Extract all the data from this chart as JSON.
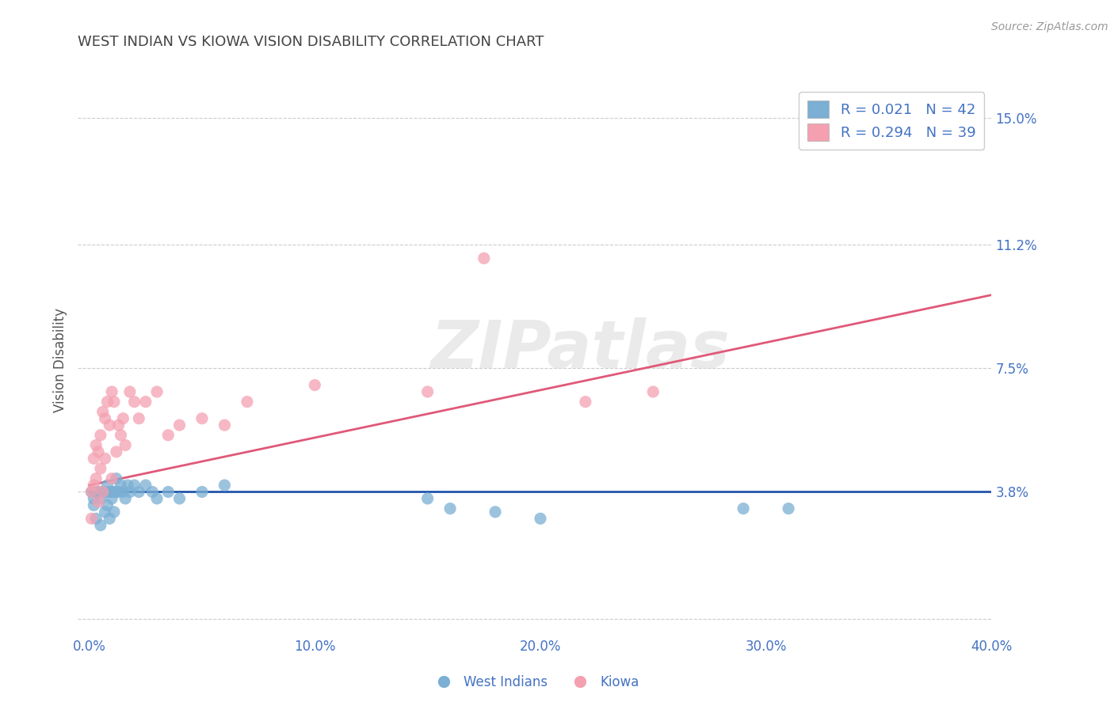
{
  "title": "WEST INDIAN VS KIOWA VISION DISABILITY CORRELATION CHART",
  "source": "Source: ZipAtlas.com",
  "ylabel": "Vision Disability",
  "xlim": [
    -0.005,
    0.4
  ],
  "ylim": [
    -0.005,
    0.16
  ],
  "yticks": [
    0.0,
    0.038,
    0.075,
    0.112,
    0.15
  ],
  "ytick_labels": [
    "",
    "3.8%",
    "7.5%",
    "11.2%",
    "15.0%"
  ],
  "xticks": [
    0.0,
    0.1,
    0.2,
    0.3,
    0.4
  ],
  "xtick_labels": [
    "0.0%",
    "10.0%",
    "20.0%",
    "30.0%",
    "40.0%"
  ],
  "west_indian_color": "#7BAFD4",
  "kiowa_color": "#F4A0B0",
  "trend_blue_color": "#2255AA",
  "trend_pink_color": "#E05878",
  "R_blue": "0.021",
  "N_blue": 42,
  "R_pink": "0.294",
  "N_pink": 39,
  "legend_label_blue": "West Indians",
  "legend_label_pink": "Kiowa",
  "watermark": "ZIPatlas",
  "title_color": "#444444",
  "axis_label_color": "#555555",
  "tick_color": "#4472C4",
  "legend_text_color": "#4472C4",
  "west_indian_scatter_x": [
    0.001,
    0.002,
    0.002,
    0.003,
    0.003,
    0.004,
    0.005,
    0.005,
    0.006,
    0.007,
    0.007,
    0.008,
    0.008,
    0.009,
    0.009,
    0.01,
    0.01,
    0.011,
    0.011,
    0.012,
    0.012,
    0.013,
    0.014,
    0.015,
    0.016,
    0.017,
    0.018,
    0.02,
    0.022,
    0.025,
    0.028,
    0.03,
    0.035,
    0.04,
    0.05,
    0.06,
    0.15,
    0.16,
    0.18,
    0.2,
    0.29,
    0.31
  ],
  "west_indian_scatter_y": [
    0.038,
    0.036,
    0.034,
    0.038,
    0.03,
    0.038,
    0.036,
    0.028,
    0.038,
    0.038,
    0.032,
    0.04,
    0.034,
    0.038,
    0.03,
    0.038,
    0.036,
    0.038,
    0.032,
    0.038,
    0.042,
    0.038,
    0.04,
    0.038,
    0.036,
    0.04,
    0.038,
    0.04,
    0.038,
    0.04,
    0.038,
    0.036,
    0.038,
    0.036,
    0.038,
    0.04,
    0.036,
    0.033,
    0.032,
    0.03,
    0.033,
    0.033
  ],
  "kiowa_scatter_x": [
    0.001,
    0.001,
    0.002,
    0.002,
    0.003,
    0.003,
    0.004,
    0.004,
    0.005,
    0.005,
    0.006,
    0.006,
    0.007,
    0.007,
    0.008,
    0.009,
    0.01,
    0.01,
    0.011,
    0.012,
    0.013,
    0.014,
    0.015,
    0.016,
    0.018,
    0.02,
    0.022,
    0.025,
    0.03,
    0.035,
    0.04,
    0.05,
    0.06,
    0.07,
    0.1,
    0.15,
    0.175,
    0.22,
    0.25
  ],
  "kiowa_scatter_y": [
    0.038,
    0.03,
    0.048,
    0.04,
    0.052,
    0.042,
    0.05,
    0.035,
    0.055,
    0.045,
    0.062,
    0.038,
    0.06,
    0.048,
    0.065,
    0.058,
    0.068,
    0.042,
    0.065,
    0.05,
    0.058,
    0.055,
    0.06,
    0.052,
    0.068,
    0.065,
    0.06,
    0.065,
    0.068,
    0.055,
    0.058,
    0.06,
    0.058,
    0.065,
    0.07,
    0.068,
    0.108,
    0.065,
    0.068
  ],
  "blue_trend_x": [
    0.0,
    0.4
  ],
  "blue_trend_y": [
    0.038,
    0.038
  ],
  "pink_trend_x": [
    0.0,
    0.4
  ],
  "pink_trend_y": [
    0.04,
    0.097
  ]
}
